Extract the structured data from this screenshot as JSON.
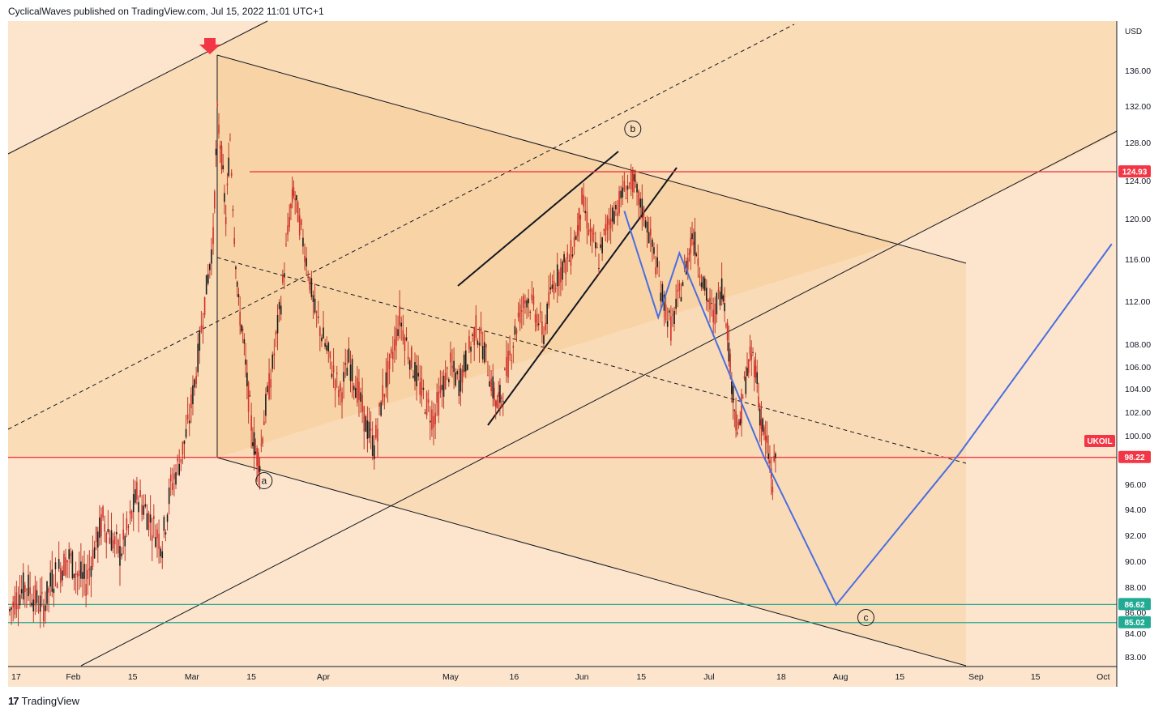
{
  "header": {
    "publish_line": "CyclicalWaves published on TradingView.com, Jul 15, 2022 11:01 UTC+1"
  },
  "footer": {
    "logo_glyph": "17",
    "brand": "TradingView"
  },
  "chart_data": {
    "type": "candlestick",
    "currency_label": "USD",
    "symbol": "UKOIL",
    "y_ticks": [
      "136.00",
      "132.00",
      "128.00",
      "124.00",
      "120.00",
      "116.00",
      "112.00",
      "108.00",
      "106.00",
      "104.00",
      "102.00",
      "100.00",
      "96.00",
      "94.00",
      "92.00",
      "90.00",
      "88.00",
      "86.00",
      "84.00",
      "83.00"
    ],
    "y_tick_values": [
      136,
      132,
      128,
      124,
      120,
      116,
      112,
      108,
      106,
      104,
      102,
      100,
      96,
      94,
      92,
      90,
      88,
      86,
      84,
      83
    ],
    "x_ticks": [
      {
        "label": "17",
        "t": 0
      },
      {
        "label": "Feb",
        "t": 15
      },
      {
        "label": "15",
        "t": 29
      },
      {
        "label": "Mar",
        "t": 43
      },
      {
        "label": "15",
        "t": 57
      },
      {
        "label": "Apr",
        "t": 74
      },
      {
        "label": "May",
        "t": 104
      },
      {
        "label": "16",
        "t": 119
      },
      {
        "label": "Jun",
        "t": 135
      },
      {
        "label": "15",
        "t": 149
      },
      {
        "label": "Jul",
        "t": 165
      },
      {
        "label": "18",
        "t": 182
      },
      {
        "label": "Aug",
        "t": 196
      },
      {
        "label": "15",
        "t": 210
      },
      {
        "label": "Sep",
        "t": 228
      },
      {
        "label": "15",
        "t": 242
      },
      {
        "label": "Oct",
        "t": 258
      }
    ],
    "price_levels": [
      {
        "value": 124.93,
        "label": "124.93",
        "color": "#f23645"
      },
      {
        "value": 98.22,
        "label": "98.22",
        "color": "#f23645"
      },
      {
        "value": 86.62,
        "label": "86.62",
        "color": "#22ab94"
      },
      {
        "value": 85.02,
        "label": "85.02",
        "color": "#22ab94"
      }
    ],
    "wave_labels": [
      {
        "text": "a",
        "t": 60,
        "price": 96.3
      },
      {
        "text": "b",
        "t": 147,
        "price": 129.5
      },
      {
        "text": "c",
        "t": 202,
        "price": 85.5
      }
    ],
    "projection_path": [
      {
        "t": 145,
        "price": 120.8
      },
      {
        "t": 153,
        "price": 110.5
      },
      {
        "t": 158,
        "price": 116.6
      },
      {
        "t": 178,
        "price": 98.2
      },
      {
        "t": 195,
        "price": 86.6
      },
      {
        "t": 224,
        "price": 98.5
      },
      {
        "t": 260,
        "price": 117.5
      }
    ],
    "price_series": [
      {
        "t": 0,
        "price": 86.1
      },
      {
        "t": 2,
        "price": 87.4
      },
      {
        "t": 4,
        "price": 88.2
      },
      {
        "t": 6,
        "price": 87.0
      },
      {
        "t": 8,
        "price": 86.4
      },
      {
        "t": 10,
        "price": 88.6
      },
      {
        "t": 12,
        "price": 89.5
      },
      {
        "t": 14,
        "price": 90.3
      },
      {
        "t": 16,
        "price": 89.0
      },
      {
        "t": 18,
        "price": 88.4
      },
      {
        "t": 20,
        "price": 91.0
      },
      {
        "t": 22,
        "price": 93.2
      },
      {
        "t": 24,
        "price": 91.8
      },
      {
        "t": 26,
        "price": 90.6
      },
      {
        "t": 28,
        "price": 92.5
      },
      {
        "t": 30,
        "price": 95.2
      },
      {
        "t": 32,
        "price": 94.0
      },
      {
        "t": 34,
        "price": 92.6
      },
      {
        "t": 36,
        "price": 91.4
      },
      {
        "t": 38,
        "price": 95.8
      },
      {
        "t": 40,
        "price": 97.8
      },
      {
        "t": 42,
        "price": 100.6
      },
      {
        "t": 44,
        "price": 105.5
      },
      {
        "t": 46,
        "price": 112.0
      },
      {
        "t": 48,
        "price": 118.0
      },
      {
        "t": 49,
        "price": 131.0
      },
      {
        "t": 50,
        "price": 126.5
      },
      {
        "t": 51,
        "price": 120.0
      },
      {
        "t": 52,
        "price": 128.5
      },
      {
        "t": 53,
        "price": 118.5
      },
      {
        "t": 54,
        "price": 111.5
      },
      {
        "t": 55,
        "price": 109.0
      },
      {
        "t": 56,
        "price": 104.5
      },
      {
        "t": 57,
        "price": 101.0
      },
      {
        "t": 58,
        "price": 98.6
      },
      {
        "t": 59,
        "price": 98.0
      },
      {
        "t": 60,
        "price": 101.5
      },
      {
        "t": 62,
        "price": 106.0
      },
      {
        "t": 64,
        "price": 112.0
      },
      {
        "t": 66,
        "price": 120.0
      },
      {
        "t": 67,
        "price": 123.0
      },
      {
        "t": 68,
        "price": 120.5
      },
      {
        "t": 70,
        "price": 116.0
      },
      {
        "t": 72,
        "price": 111.0
      },
      {
        "t": 74,
        "price": 108.5
      },
      {
        "t": 76,
        "price": 106.0
      },
      {
        "t": 78,
        "price": 103.5
      },
      {
        "t": 80,
        "price": 106.5
      },
      {
        "t": 82,
        "price": 104.0
      },
      {
        "t": 84,
        "price": 101.0
      },
      {
        "t": 86,
        "price": 99.0
      },
      {
        "t": 88,
        "price": 103.5
      },
      {
        "t": 90,
        "price": 106.5
      },
      {
        "t": 92,
        "price": 110.5
      },
      {
        "t": 94,
        "price": 107.5
      },
      {
        "t": 96,
        "price": 105.0
      },
      {
        "t": 98,
        "price": 103.0
      },
      {
        "t": 100,
        "price": 101.5
      },
      {
        "t": 102,
        "price": 104.0
      },
      {
        "t": 104,
        "price": 106.0
      },
      {
        "t": 106,
        "price": 104.5
      },
      {
        "t": 108,
        "price": 107.0
      },
      {
        "t": 110,
        "price": 109.5
      },
      {
        "t": 112,
        "price": 107.5
      },
      {
        "t": 114,
        "price": 104.0
      },
      {
        "t": 115,
        "price": 102.5
      },
      {
        "t": 116,
        "price": 103.5
      },
      {
        "t": 118,
        "price": 107.0
      },
      {
        "t": 120,
        "price": 110.5
      },
      {
        "t": 122,
        "price": 112.5
      },
      {
        "t": 124,
        "price": 111.0
      },
      {
        "t": 126,
        "price": 109.0
      },
      {
        "t": 128,
        "price": 113.5
      },
      {
        "t": 130,
        "price": 115.0
      },
      {
        "t": 132,
        "price": 116.0
      },
      {
        "t": 134,
        "price": 119.0
      },
      {
        "t": 135,
        "price": 122.0
      },
      {
        "t": 137,
        "price": 118.5
      },
      {
        "t": 139,
        "price": 116.0
      },
      {
        "t": 141,
        "price": 119.5
      },
      {
        "t": 143,
        "price": 121.0
      },
      {
        "t": 145,
        "price": 123.0
      },
      {
        "t": 147,
        "price": 124.0
      },
      {
        "t": 148,
        "price": 122.5
      },
      {
        "t": 150,
        "price": 120.0
      },
      {
        "t": 152,
        "price": 116.5
      },
      {
        "t": 154,
        "price": 112.5
      },
      {
        "t": 156,
        "price": 109.5
      },
      {
        "t": 158,
        "price": 112.5
      },
      {
        "t": 160,
        "price": 116.0
      },
      {
        "t": 161,
        "price": 118.5
      },
      {
        "t": 162,
        "price": 117.0
      },
      {
        "t": 164,
        "price": 113.0
      },
      {
        "t": 166,
        "price": 110.5
      },
      {
        "t": 168,
        "price": 113.5
      },
      {
        "t": 169,
        "price": 111.0
      },
      {
        "t": 170,
        "price": 106.0
      },
      {
        "t": 171,
        "price": 102.5
      },
      {
        "t": 172,
        "price": 100.0
      },
      {
        "t": 173,
        "price": 103.5
      },
      {
        "t": 174,
        "price": 105.5
      },
      {
        "t": 175,
        "price": 107.0
      },
      {
        "t": 176,
        "price": 106.0
      },
      {
        "t": 177,
        "price": 102.0
      },
      {
        "t": 178,
        "price": 100.0
      },
      {
        "t": 179,
        "price": 98.5
      },
      {
        "t": 180,
        "price": 96.0
      },
      {
        "t": 181,
        "price": 99.5
      }
    ]
  }
}
